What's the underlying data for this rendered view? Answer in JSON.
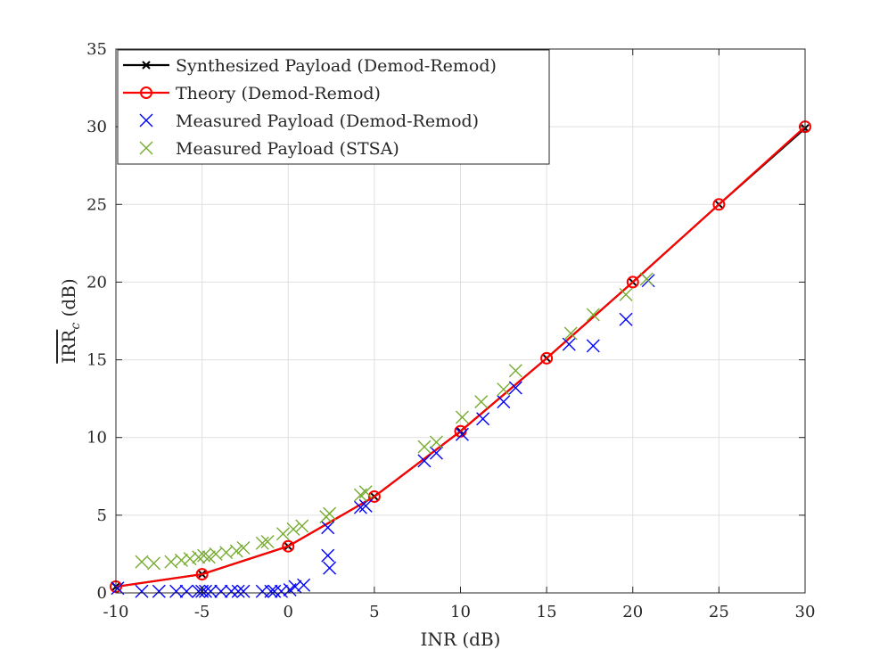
{
  "chart_data": {
    "type": "line",
    "title": "",
    "xlabel": "INR (dB)",
    "ylabel": "IRR",
    "ylabel_subscript": "c",
    "ylabel_unit": " (dB)",
    "xlim": [
      -10,
      30
    ],
    "ylim": [
      0,
      35
    ],
    "xticks": [
      -10,
      -5,
      0,
      5,
      10,
      15,
      20,
      25,
      30
    ],
    "yticks": [
      0,
      5,
      10,
      15,
      20,
      25,
      30,
      35
    ],
    "grid": true,
    "legend_position": "top-left",
    "series": [
      {
        "name": "Synthesized Payload (Demod-Remod)",
        "kind": "line",
        "marker": "x",
        "color": "#000000",
        "x": [
          -10,
          -5,
          0,
          5,
          10,
          15,
          20,
          25,
          30
        ],
        "y": [
          0.4,
          1.2,
          3.0,
          6.2,
          10.4,
          15.1,
          20.0,
          25.0,
          29.9
        ]
      },
      {
        "name": "Theory (Demod-Remod)",
        "kind": "line",
        "marker": "o",
        "color": "#ff0000",
        "x": [
          -10,
          -5,
          0,
          5,
          10,
          15,
          20,
          25,
          30
        ],
        "y": [
          0.4,
          1.2,
          3.0,
          6.2,
          10.4,
          15.1,
          20.0,
          25.0,
          30.0
        ]
      },
      {
        "name": "Measured Payload (Demod-Remod)",
        "kind": "scatter",
        "marker": "x",
        "color": "#0000ff",
        "x": [
          -9.9,
          -8.5,
          -7.5,
          -6.5,
          -5.9,
          -5.2,
          -5.0,
          -4.8,
          -4.5,
          -3.9,
          -3.3,
          -2.9,
          -2.6,
          -1.5,
          -1.0,
          -0.8,
          -0.4,
          0.1,
          0.4,
          0.9,
          2.3,
          2.3,
          2.4,
          4.2,
          4.5,
          7.9,
          8.6,
          10.1,
          11.3,
          12.5,
          13.2,
          16.3,
          17.7,
          19.6,
          20.9
        ],
        "y": [
          0.3,
          0.1,
          0.1,
          0.1,
          0.1,
          0.1,
          0.1,
          0.1,
          0.1,
          0.1,
          0.1,
          0.1,
          0.1,
          0.1,
          0.1,
          0.1,
          0.1,
          0.2,
          0.4,
          0.5,
          4.2,
          2.4,
          1.6,
          5.5,
          5.6,
          8.5,
          9.0,
          10.2,
          11.2,
          12.3,
          13.2,
          16.0,
          15.9,
          17.6,
          20.1
        ]
      },
      {
        "name": "Measured Payload (STSA)",
        "kind": "scatter",
        "marker": "x",
        "color": "#77ac30",
        "x": [
          -8.5,
          -7.8,
          -6.8,
          -6.2,
          -5.7,
          -5.2,
          -4.9,
          -4.6,
          -4.2,
          -3.6,
          -3.0,
          -2.6,
          -1.5,
          -1.2,
          -0.3,
          0.3,
          0.8,
          2.2,
          2.4,
          4.2,
          4.5,
          7.9,
          8.6,
          10.1,
          11.2,
          12.5,
          13.2,
          16.4,
          17.7,
          19.6,
          20.8
        ],
        "y": [
          2.0,
          1.9,
          2.0,
          2.1,
          2.2,
          2.3,
          2.4,
          2.3,
          2.5,
          2.6,
          2.7,
          2.9,
          3.2,
          3.3,
          3.8,
          4.1,
          4.3,
          4.9,
          5.1,
          6.3,
          6.5,
          9.4,
          9.7,
          11.3,
          12.3,
          13.1,
          14.3,
          16.7,
          17.9,
          19.2,
          20.2
        ]
      }
    ]
  }
}
